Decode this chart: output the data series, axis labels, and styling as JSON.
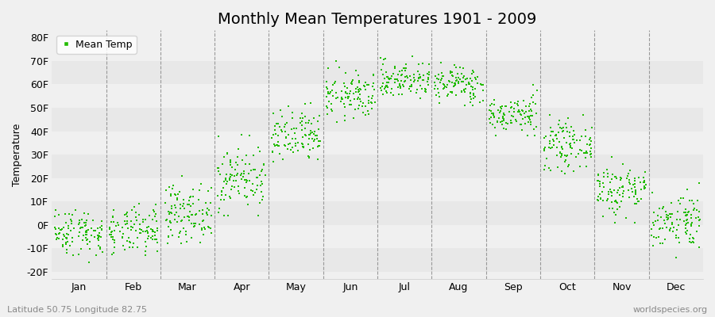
{
  "title": "Monthly Mean Temperatures 1901 - 2009",
  "ylabel": "Temperature",
  "xlabel_labels": [
    "Jan",
    "Feb",
    "Mar",
    "Apr",
    "May",
    "Jun",
    "Jul",
    "Aug",
    "Sep",
    "Oct",
    "Nov",
    "Dec"
  ],
  "ytick_labels": [
    "-20F",
    "-10F",
    "0F",
    "10F",
    "20F",
    "30F",
    "40F",
    "50F",
    "60F",
    "70F",
    "80F"
  ],
  "ytick_values": [
    -20,
    -10,
    0,
    10,
    20,
    30,
    40,
    50,
    60,
    70,
    80
  ],
  "ylim": [
    -23,
    83
  ],
  "dot_color": "#22bb00",
  "bg_color": "#f0f0f0",
  "band_colors": [
    "#e8e8e8",
    "#f0f0f0"
  ],
  "dashed_line_color": "#999999",
  "legend_label": "Mean Temp",
  "footnote_left": "Latitude 50.75 Longitude 82.75",
  "footnote_right": "worldspecies.org",
  "title_fontsize": 14,
  "axis_fontsize": 9,
  "legend_fontsize": 9,
  "footnote_fontsize": 8,
  "num_years": 109,
  "monthly_means": [
    -3,
    -3,
    5,
    20,
    37,
    55,
    62,
    60,
    47,
    34,
    15,
    2
  ],
  "monthly_stds": [
    5,
    5,
    6,
    7,
    6,
    5,
    4,
    4,
    4,
    5,
    6,
    6
  ],
  "monthly_mins": [
    -19,
    -19,
    -8,
    4,
    24,
    44,
    53,
    51,
    38,
    22,
    1,
    -14
  ],
  "monthly_maxs": [
    14,
    12,
    21,
    40,
    52,
    70,
    72,
    71,
    60,
    47,
    29,
    20
  ]
}
